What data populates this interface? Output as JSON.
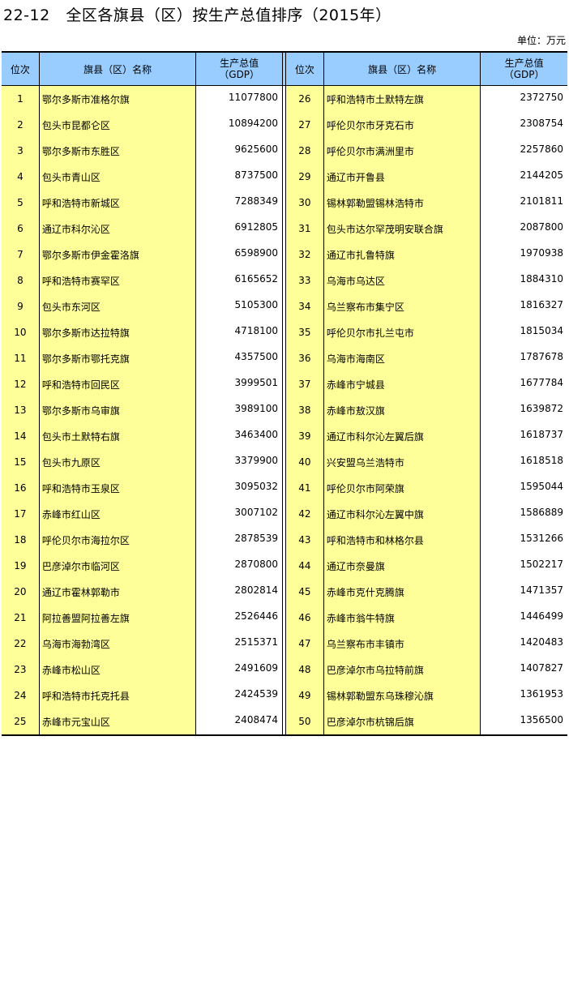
{
  "title": "22-12   全区各旗县（区）按生产总值排序（2015年）",
  "unit": "单位：万元",
  "headers": {
    "rank": "位次",
    "name": "旗县（区）名称",
    "gdp_line1": "生产总值",
    "gdp_line2": "（GDP）"
  },
  "colors": {
    "header_bg": "#99ccff",
    "highlight_bg": "#ffff99"
  },
  "rows": [
    {
      "rank": "1",
      "name": "鄂尔多斯市准格尔旗",
      "gdp": "11077800"
    },
    {
      "rank": "2",
      "name": "包头市昆都仑区",
      "gdp": "10894200"
    },
    {
      "rank": "3",
      "name": "鄂尔多斯市东胜区",
      "gdp": "9625600"
    },
    {
      "rank": "4",
      "name": "包头市青山区",
      "gdp": "8737500"
    },
    {
      "rank": "5",
      "name": "呼和浩特市新城区",
      "gdp": "7288349"
    },
    {
      "rank": "6",
      "name": "通辽市科尔沁区",
      "gdp": "6912805"
    },
    {
      "rank": "7",
      "name": "鄂尔多斯市伊金霍洛旗",
      "gdp": "6598900"
    },
    {
      "rank": "8",
      "name": "呼和浩特市赛罕区",
      "gdp": "6165652"
    },
    {
      "rank": "9",
      "name": "包头市东河区",
      "gdp": "5105300"
    },
    {
      "rank": "10",
      "name": "鄂尔多斯市达拉特旗",
      "gdp": "4718100"
    },
    {
      "rank": "11",
      "name": "鄂尔多斯市鄂托克旗",
      "gdp": "4357500"
    },
    {
      "rank": "12",
      "name": "呼和浩特市回民区",
      "gdp": "3999501"
    },
    {
      "rank": "13",
      "name": "鄂尔多斯市乌审旗",
      "gdp": "3989100"
    },
    {
      "rank": "14",
      "name": "包头市土默特右旗",
      "gdp": "3463400"
    },
    {
      "rank": "15",
      "name": "包头市九原区",
      "gdp": "3379900"
    },
    {
      "rank": "16",
      "name": "呼和浩特市玉泉区",
      "gdp": "3095032"
    },
    {
      "rank": "17",
      "name": "赤峰市红山区",
      "gdp": "3007102"
    },
    {
      "rank": "18",
      "name": "呼伦贝尔市海拉尔区",
      "gdp": "2878539"
    },
    {
      "rank": "19",
      "name": "巴彦淖尔市临河区",
      "gdp": "2870800"
    },
    {
      "rank": "20",
      "name": "通辽市霍林郭勒市",
      "gdp": "2802814"
    },
    {
      "rank": "21",
      "name": "阿拉善盟阿拉善左旗",
      "gdp": "2526446"
    },
    {
      "rank": "22",
      "name": "乌海市海勃湾区",
      "gdp": "2515371"
    },
    {
      "rank": "23",
      "name": "赤峰市松山区",
      "gdp": "2491609"
    },
    {
      "rank": "24",
      "name": "呼和浩特市托克托县",
      "gdp": "2424539"
    },
    {
      "rank": "25",
      "name": "赤峰市元宝山区",
      "gdp": "2408474"
    },
    {
      "rank": "26",
      "name": "呼和浩特市土默特左旗",
      "gdp": "2372750"
    },
    {
      "rank": "27",
      "name": "呼伦贝尔市牙克石市",
      "gdp": "2308754"
    },
    {
      "rank": "28",
      "name": "呼伦贝尔市满洲里市",
      "gdp": "2257860"
    },
    {
      "rank": "29",
      "name": "通辽市开鲁县",
      "gdp": "2144205"
    },
    {
      "rank": "30",
      "name": "锡林郭勒盟锡林浩特市",
      "gdp": "2101811"
    },
    {
      "rank": "31",
      "name": "包头市达尔罕茂明安联合旗",
      "gdp": "2087800"
    },
    {
      "rank": "32",
      "name": "通辽市扎鲁特旗",
      "gdp": "1970938"
    },
    {
      "rank": "33",
      "name": "乌海市乌达区",
      "gdp": "1884310"
    },
    {
      "rank": "34",
      "name": "乌兰察布市集宁区",
      "gdp": "1816327"
    },
    {
      "rank": "35",
      "name": "呼伦贝尔市扎兰屯市",
      "gdp": "1815034"
    },
    {
      "rank": "36",
      "name": "乌海市海南区",
      "gdp": "1787678"
    },
    {
      "rank": "37",
      "name": "赤峰市宁城县",
      "gdp": "1677784"
    },
    {
      "rank": "38",
      "name": "赤峰市敖汉旗",
      "gdp": "1639872"
    },
    {
      "rank": "39",
      "name": "通辽市科尔沁左翼后旗",
      "gdp": "1618737"
    },
    {
      "rank": "40",
      "name": "兴安盟乌兰浩特市",
      "gdp": "1618518"
    },
    {
      "rank": "41",
      "name": "呼伦贝尔市阿荣旗",
      "gdp": "1595044"
    },
    {
      "rank": "42",
      "name": "通辽市科尔沁左翼中旗",
      "gdp": "1586889"
    },
    {
      "rank": "43",
      "name": "呼和浩特市和林格尔县",
      "gdp": "1531266"
    },
    {
      "rank": "44",
      "name": "通辽市奈曼旗",
      "gdp": "1502217"
    },
    {
      "rank": "45",
      "name": "赤峰市克什克腾旗",
      "gdp": "1471357"
    },
    {
      "rank": "46",
      "name": "赤峰市翁牛特旗",
      "gdp": "1446499"
    },
    {
      "rank": "47",
      "name": "乌兰察布市丰镇市",
      "gdp": "1420483"
    },
    {
      "rank": "48",
      "name": "巴彦淖尔市乌拉特前旗",
      "gdp": "1407827"
    },
    {
      "rank": "49",
      "name": "锡林郭勒盟东乌珠穆沁旗",
      "gdp": "1361953"
    },
    {
      "rank": "50",
      "name": "巴彦淖尔市杭锦后旗",
      "gdp": "1356500"
    }
  ]
}
